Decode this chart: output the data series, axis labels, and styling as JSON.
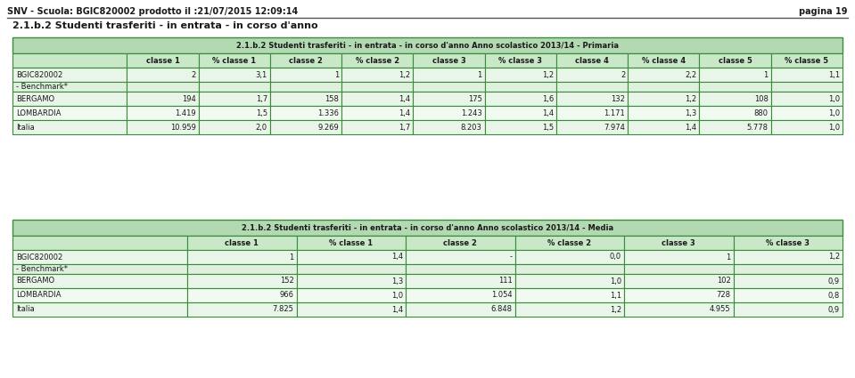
{
  "header_text": "SNV - Scuola: BGIC820002 prodotto il :21/07/2015 12:09:14",
  "page_text": "pagina 19",
  "section_title": "2.1.b.2 Studenti trasferiti - in entrata - in corso d'anno",
  "table1": {
    "title": "2.1.b.2 Studenti trasferiti - in entrata - in corso d'anno Anno scolastico 2013/14 - Primaria",
    "columns": [
      "",
      "classe 1",
      "% classe 1",
      "classe 2",
      "% classe 2",
      "classe 3",
      "% classe 3",
      "classe 4",
      "% classe 4",
      "classe 5",
      "% classe 5"
    ],
    "rows": [
      [
        "BGIC820002",
        "2",
        "3,1",
        "1",
        "1,2",
        "1",
        "1,2",
        "2",
        "2,2",
        "1",
        "1,1"
      ],
      [
        "- Benchmark*",
        "",
        "",
        "",
        "",
        "",
        "",
        "",
        "",
        "",
        ""
      ],
      [
        "BERGAMO",
        "194",
        "1,7",
        "158",
        "1,4",
        "175",
        "1,6",
        "132",
        "1,2",
        "108",
        "1,0"
      ],
      [
        "LOMBARDIA",
        "1.419",
        "1,5",
        "1.336",
        "1,4",
        "1.243",
        "1,4",
        "1.171",
        "1,3",
        "880",
        "1,0"
      ],
      [
        "Italia",
        "10.959",
        "2,0",
        "9.269",
        "1,7",
        "8.203",
        "1,5",
        "7.974",
        "1,4",
        "5.778",
        "1,0"
      ]
    ]
  },
  "table2": {
    "title": "2.1.b.2 Studenti trasferiti - in entrata - in corso d'anno Anno scolastico 2013/14 - Media",
    "columns": [
      "",
      "classe 1",
      "% classe 1",
      "classe 2",
      "% classe 2",
      "classe 3",
      "% classe 3"
    ],
    "rows": [
      [
        "BGIC820002",
        "1",
        "1,4",
        "-",
        "0,0",
        "1",
        "1,2"
      ],
      [
        "- Benchmark*",
        "",
        "",
        "",
        "",
        "",
        ""
      ],
      [
        "BERGAMO",
        "152",
        "1,3",
        "111",
        "1,0",
        "102",
        "0,9"
      ],
      [
        "LOMBARDIA",
        "966",
        "1,0",
        "1.054",
        "1,1",
        "728",
        "0,8"
      ],
      [
        "Italia",
        "7.825",
        "1,4",
        "6.848",
        "1,2",
        "4.955",
        "0,9"
      ]
    ]
  },
  "title_bg": "#b2d9b2",
  "header_bg": "#c8e8c8",
  "row_bg_normal": "#e8f5e8",
  "row_bg_alt": "#f0faf0",
  "row_bg_benchmark": "#dff0df",
  "border_color": "#3a8c3a",
  "text_color": "#1a1a1a",
  "page_header_line_color": "#555555",
  "page_bg": "#ffffff"
}
